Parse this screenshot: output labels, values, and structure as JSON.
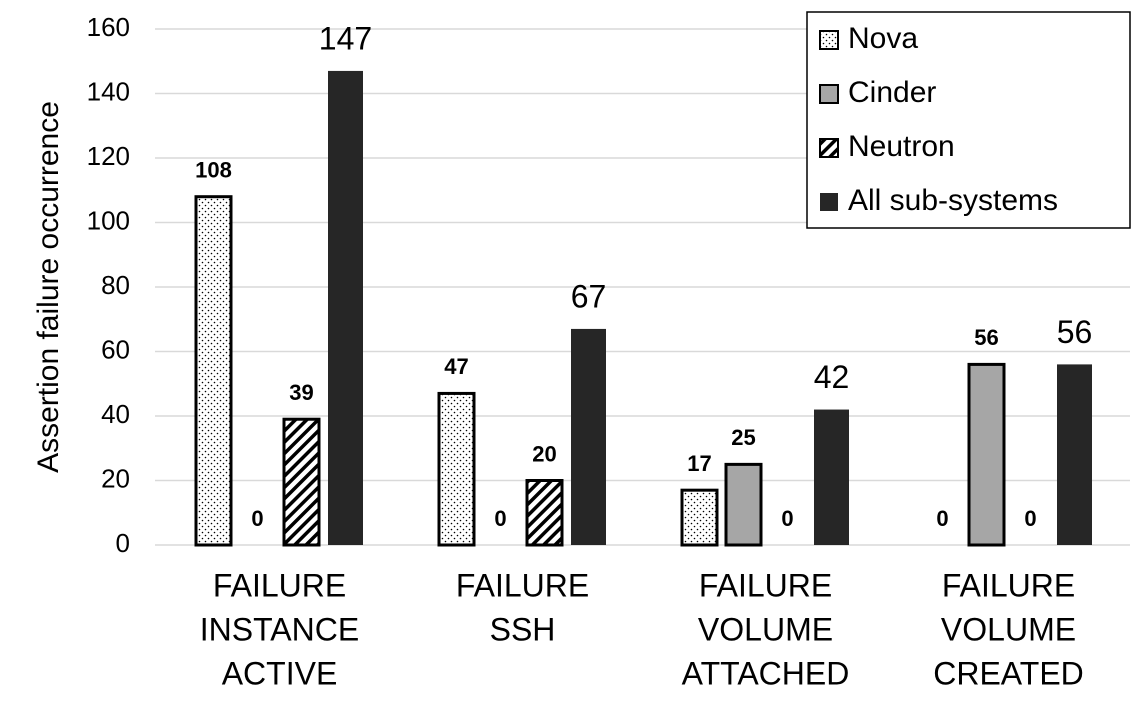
{
  "chart_data": {
    "type": "bar",
    "y_label": "Assertion failure occurrence",
    "categories": [
      [
        "FAILURE",
        "INSTANCE",
        "ACTIVE"
      ],
      [
        "FAILURE",
        "SSH"
      ],
      [
        "FAILURE",
        "VOLUME",
        "ATTACHED"
      ],
      [
        "FAILURE",
        "VOLUME",
        "CREATED"
      ]
    ],
    "series": [
      {
        "name": "Nova",
        "color": "#ffffff",
        "pattern": "dots",
        "values": [
          108,
          47,
          17,
          0
        ]
      },
      {
        "name": "Cinder",
        "color": "#a6a6a6",
        "pattern": "solid",
        "values": [
          0,
          0,
          25,
          56
        ]
      },
      {
        "name": "Neutron",
        "color": "#ffffff",
        "pattern": "hatch",
        "values": [
          39,
          20,
          0,
          0
        ]
      },
      {
        "name": "All sub-systems",
        "color": "#262626",
        "pattern": "solid",
        "values": [
          147,
          67,
          42,
          56
        ]
      }
    ],
    "ylim": [
      0,
      160
    ],
    "yticks": [
      0,
      20,
      40,
      60,
      80,
      100,
      120,
      140,
      160
    ],
    "grid": true,
    "legend": "top-right"
  }
}
